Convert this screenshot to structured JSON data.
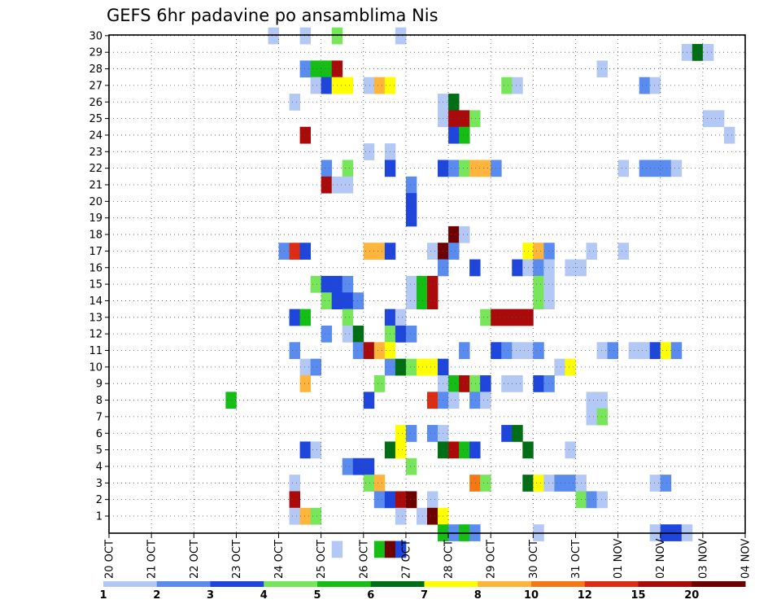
{
  "chart_data": {
    "type": "heatmap",
    "title": "GEFS 6hr padavine po ansamblima Nis",
    "x_tick_labels": [
      "20 OCT",
      "21 OCT",
      "22 OCT",
      "23 OCT",
      "24 OCT",
      "25 OCT",
      "26 OCT",
      "27 OCT",
      "28 OCT",
      "29 OCT",
      "30 OCT",
      "31 OCT",
      "01 NOV",
      "02 NOV",
      "03 NOV",
      "04 NOV"
    ],
    "y_tick_labels": [
      "1",
      "2",
      "3",
      "4",
      "5",
      "6",
      "7",
      "8",
      "9",
      "10",
      "11",
      "12",
      "13",
      "14",
      "15",
      "16",
      "17",
      "18",
      "19",
      "20",
      "21",
      "22",
      "23",
      "24",
      "25",
      "26",
      "27",
      "28",
      "29",
      "30"
    ],
    "steps_per_day": 4,
    "members": 30,
    "grid": "dotted",
    "colorbar": {
      "position": "bottom",
      "labels": [
        "1",
        "2",
        "3",
        "4",
        "5",
        "6",
        "7",
        "8",
        "10",
        "12",
        "15",
        "20"
      ],
      "colors": [
        "#b4c8f5",
        "#5a8cf0",
        "#1e46dc",
        "#78e65a",
        "#14be14",
        "#006e14",
        "#ffff00",
        "#ffb43c",
        "#f57814",
        "#dc2d14",
        "#aa0a0a",
        "#6e0000"
      ]
    },
    "cells": [
      [
        30,
        15,
        0
      ],
      [
        30,
        18,
        0
      ],
      [
        30,
        21,
        3
      ],
      [
        30,
        27,
        0
      ],
      [
        29,
        54,
        0
      ],
      [
        29,
        55,
        5
      ],
      [
        29,
        56,
        0
      ],
      [
        28,
        18,
        1
      ],
      [
        28,
        19,
        4
      ],
      [
        28,
        20,
        4
      ],
      [
        28,
        21,
        10
      ],
      [
        28,
        46,
        0
      ],
      [
        27,
        19,
        0
      ],
      [
        27,
        20,
        2
      ],
      [
        27,
        21,
        6
      ],
      [
        27,
        22,
        6
      ],
      [
        27,
        24,
        0
      ],
      [
        27,
        25,
        7
      ],
      [
        27,
        26,
        6
      ],
      [
        27,
        37,
        3
      ],
      [
        27,
        38,
        0
      ],
      [
        27,
        50,
        1
      ],
      [
        27,
        51,
        0
      ],
      [
        26,
        17,
        0
      ],
      [
        26,
        31,
        0
      ],
      [
        26,
        32,
        5
      ],
      [
        25,
        31,
        0
      ],
      [
        25,
        32,
        10
      ],
      [
        25,
        33,
        10
      ],
      [
        25,
        34,
        3
      ],
      [
        25,
        56,
        0
      ],
      [
        25,
        57,
        0
      ],
      [
        24,
        18,
        10
      ],
      [
        24,
        32,
        2
      ],
      [
        24,
        33,
        4
      ],
      [
        24,
        58,
        0
      ],
      [
        23,
        24,
        0
      ],
      [
        23,
        26,
        0
      ],
      [
        22,
        20,
        1
      ],
      [
        22,
        22,
        3
      ],
      [
        22,
        26,
        2
      ],
      [
        22,
        31,
        2
      ],
      [
        22,
        32,
        1
      ],
      [
        22,
        33,
        3
      ],
      [
        22,
        34,
        7
      ],
      [
        22,
        35,
        7
      ],
      [
        22,
        36,
        1
      ],
      [
        22,
        48,
        0
      ],
      [
        22,
        50,
        1
      ],
      [
        22,
        51,
        1
      ],
      [
        22,
        52,
        1
      ],
      [
        22,
        53,
        0
      ],
      [
        21,
        20,
        10
      ],
      [
        21,
        21,
        0
      ],
      [
        21,
        22,
        0
      ],
      [
        21,
        28,
        1
      ],
      [
        20,
        28,
        2
      ],
      [
        19,
        28,
        2
      ],
      [
        18,
        32,
        11
      ],
      [
        18,
        33,
        0
      ],
      [
        17,
        16,
        1
      ],
      [
        17,
        17,
        9
      ],
      [
        17,
        18,
        2
      ],
      [
        17,
        24,
        7
      ],
      [
        17,
        25,
        7
      ],
      [
        17,
        26,
        2
      ],
      [
        17,
        30,
        0
      ],
      [
        17,
        31,
        11
      ],
      [
        17,
        32,
        1
      ],
      [
        17,
        39,
        6
      ],
      [
        17,
        40,
        7
      ],
      [
        17,
        41,
        1
      ],
      [
        17,
        45,
        0
      ],
      [
        17,
        48,
        0
      ],
      [
        16,
        31,
        1
      ],
      [
        16,
        34,
        2
      ],
      [
        16,
        38,
        2
      ],
      [
        16,
        39,
        0
      ],
      [
        16,
        40,
        1
      ],
      [
        16,
        41,
        0
      ],
      [
        16,
        43,
        0
      ],
      [
        16,
        44,
        0
      ],
      [
        15,
        19,
        3
      ],
      [
        15,
        20,
        2
      ],
      [
        15,
        21,
        2
      ],
      [
        15,
        22,
        1
      ],
      [
        15,
        28,
        0
      ],
      [
        15,
        29,
        4
      ],
      [
        15,
        30,
        10
      ],
      [
        15,
        40,
        3
      ],
      [
        15,
        41,
        0
      ],
      [
        14,
        20,
        3
      ],
      [
        14,
        21,
        2
      ],
      [
        14,
        22,
        2
      ],
      [
        14,
        23,
        1
      ],
      [
        14,
        28,
        0
      ],
      [
        14,
        29,
        4
      ],
      [
        14,
        30,
        10
      ],
      [
        14,
        40,
        3
      ],
      [
        14,
        41,
        0
      ],
      [
        13,
        17,
        2
      ],
      [
        13,
        18,
        4
      ],
      [
        13,
        22,
        3
      ],
      [
        13,
        26,
        2
      ],
      [
        13,
        27,
        0
      ],
      [
        13,
        35,
        3
      ],
      [
        13,
        36,
        10
      ],
      [
        13,
        37,
        10
      ],
      [
        13,
        38,
        10
      ],
      [
        13,
        39,
        10
      ],
      [
        12,
        20,
        1
      ],
      [
        12,
        22,
        0
      ],
      [
        12,
        23,
        5
      ],
      [
        12,
        26,
        3
      ],
      [
        12,
        27,
        2
      ],
      [
        12,
        28,
        1
      ],
      [
        11,
        17,
        1
      ],
      [
        11,
        23,
        1
      ],
      [
        11,
        24,
        10
      ],
      [
        11,
        25,
        7
      ],
      [
        11,
        26,
        6
      ],
      [
        11,
        33,
        1
      ],
      [
        11,
        36,
        2
      ],
      [
        11,
        37,
        1
      ],
      [
        11,
        38,
        0
      ],
      [
        11,
        39,
        0
      ],
      [
        11,
        40,
        1
      ],
      [
        11,
        46,
        0
      ],
      [
        11,
        47,
        1
      ],
      [
        11,
        49,
        0
      ],
      [
        11,
        50,
        0
      ],
      [
        11,
        51,
        2
      ],
      [
        11,
        52,
        6
      ],
      [
        11,
        53,
        1
      ],
      [
        10,
        18,
        0
      ],
      [
        10,
        19,
        1
      ],
      [
        10,
        26,
        1
      ],
      [
        10,
        27,
        5
      ],
      [
        10,
        28,
        3
      ],
      [
        10,
        29,
        6
      ],
      [
        10,
        30,
        6
      ],
      [
        10,
        31,
        2
      ],
      [
        10,
        42,
        0
      ],
      [
        10,
        43,
        6
      ],
      [
        9,
        18,
        7
      ],
      [
        9,
        25,
        3
      ],
      [
        9,
        31,
        0
      ],
      [
        9,
        32,
        4
      ],
      [
        9,
        33,
        10
      ],
      [
        9,
        34,
        3
      ],
      [
        9,
        35,
        2
      ],
      [
        9,
        37,
        0
      ],
      [
        9,
        38,
        0
      ],
      [
        9,
        40,
        2
      ],
      [
        9,
        41,
        1
      ],
      [
        8,
        11,
        4
      ],
      [
        8,
        24,
        2
      ],
      [
        8,
        30,
        9
      ],
      [
        8,
        31,
        1
      ],
      [
        8,
        32,
        0
      ],
      [
        8,
        34,
        1
      ],
      [
        8,
        35,
        0
      ],
      [
        8,
        45,
        0
      ],
      [
        8,
        46,
        0
      ],
      [
        7,
        45,
        0
      ],
      [
        7,
        46,
        3
      ],
      [
        6,
        27,
        6
      ],
      [
        6,
        28,
        1
      ],
      [
        6,
        30,
        1
      ],
      [
        6,
        31,
        0
      ],
      [
        6,
        37,
        2
      ],
      [
        6,
        38,
        5
      ],
      [
        5,
        18,
        2
      ],
      [
        5,
        19,
        0
      ],
      [
        5,
        26,
        5
      ],
      [
        5,
        27,
        6
      ],
      [
        5,
        31,
        5
      ],
      [
        5,
        32,
        10
      ],
      [
        5,
        33,
        4
      ],
      [
        5,
        34,
        2
      ],
      [
        5,
        39,
        5
      ],
      [
        5,
        43,
        0
      ],
      [
        4,
        22,
        1
      ],
      [
        4,
        23,
        2
      ],
      [
        4,
        24,
        2
      ],
      [
        4,
        28,
        3
      ],
      [
        3,
        17,
        0
      ],
      [
        3,
        24,
        3
      ],
      [
        3,
        25,
        7
      ],
      [
        3,
        34,
        8
      ],
      [
        3,
        35,
        3
      ],
      [
        3,
        39,
        5
      ],
      [
        3,
        40,
        6
      ],
      [
        3,
        41,
        0
      ],
      [
        3,
        42,
        1
      ],
      [
        3,
        43,
        1
      ],
      [
        3,
        44,
        0
      ],
      [
        3,
        51,
        0
      ],
      [
        3,
        52,
        1
      ],
      [
        2,
        17,
        10
      ],
      [
        2,
        25,
        1
      ],
      [
        2,
        26,
        2
      ],
      [
        2,
        27,
        10
      ],
      [
        2,
        28,
        11
      ],
      [
        2,
        30,
        0
      ],
      [
        2,
        44,
        3
      ],
      [
        2,
        45,
        1
      ],
      [
        2,
        46,
        0
      ],
      [
        1,
        17,
        0
      ],
      [
        1,
        18,
        7
      ],
      [
        1,
        19,
        3
      ],
      [
        1,
        27,
        0
      ],
      [
        1,
        29,
        0
      ],
      [
        1,
        30,
        11
      ],
      [
        1,
        31,
        6
      ],
      [
        0,
        31,
        4
      ],
      [
        0,
        32,
        1
      ],
      [
        0,
        33,
        4
      ],
      [
        0,
        34,
        1
      ],
      [
        0,
        40,
        0
      ],
      [
        0,
        51,
        0
      ],
      [
        0,
        52,
        2
      ],
      [
        0,
        53,
        2
      ],
      [
        0,
        54,
        0
      ],
      [
        -1,
        21,
        0
      ],
      [
        -1,
        25,
        4
      ],
      [
        -1,
        26,
        11
      ],
      [
        -1,
        27,
        2
      ]
    ]
  }
}
